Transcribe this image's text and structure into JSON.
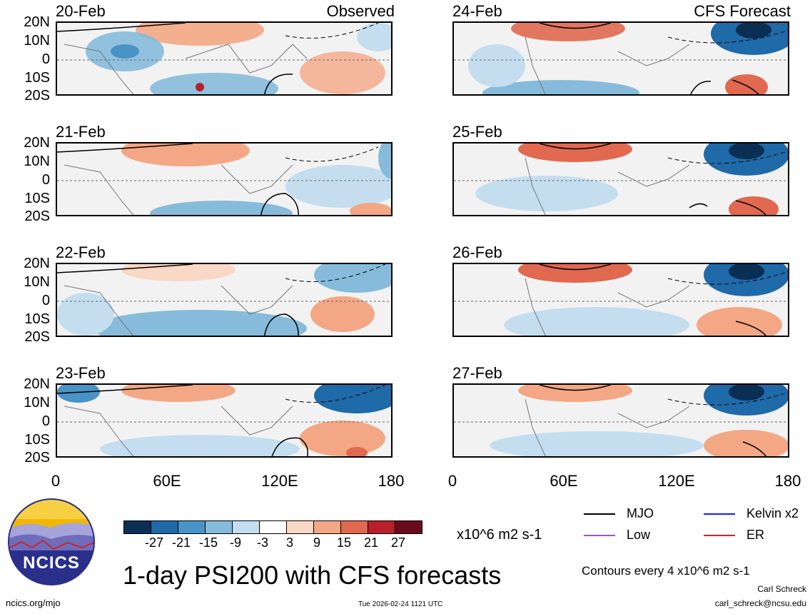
{
  "panels": {
    "left_header": "Observed",
    "right_header": "CFS Forecast",
    "left_dates": [
      "20-Feb",
      "21-Feb",
      "22-Feb",
      "23-Feb"
    ],
    "right_dates": [
      "24-Feb",
      "25-Feb",
      "26-Feb",
      "27-Feb"
    ],
    "lat_labels": [
      "20N",
      "10N",
      "0",
      "10S",
      "20S"
    ],
    "lon_labels": [
      "0",
      "60E",
      "120E",
      "180"
    ]
  },
  "colorbar": {
    "colors": [
      "#0b2e55",
      "#1f6aa8",
      "#4a93c6",
      "#86bbdb",
      "#c4def0",
      "#ffffff",
      "#fad8c6",
      "#f4a784",
      "#e06950",
      "#b81f2a",
      "#6b0a1d"
    ],
    "ticks": [
      "-27",
      "-21",
      "-15",
      "-9",
      "-3",
      "3",
      "9",
      "15",
      "21",
      "27"
    ],
    "units": "x10^6 m2 s-1"
  },
  "legend": {
    "items": [
      {
        "label": "MJO",
        "color": "#000000"
      },
      {
        "label": "Kelvin x2",
        "color": "#1a1aff"
      },
      {
        "label": "Low",
        "color": "#a050e0"
      },
      {
        "label": "ER",
        "color": "#e02020"
      }
    ],
    "contours_note": "Contours every 4 x10^6 m2 s-1"
  },
  "logo": {
    "text": "NCICS"
  },
  "title": "1-day PSI200 with CFS forecasts",
  "footer": {
    "url": "ncics.org/mjo",
    "timestamp": "Tue 2026-02-24 1121 UTC",
    "author": "Carl Schreck",
    "email": "carl_schreck@ncsu.edu"
  }
}
